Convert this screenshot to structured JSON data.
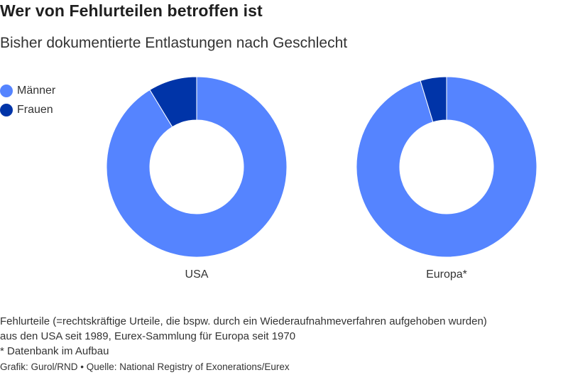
{
  "colors": {
    "maenner": "#5584ff",
    "frauen": "#0034a8"
  },
  "chart_data": {
    "type": "pie",
    "title": "Wer von Fehlurteilen betroffen ist",
    "subtitle": "Bisher dokumentierte Entlastungen nach Geschlecht",
    "series_names": [
      "Männer",
      "Frauen"
    ],
    "charts": [
      {
        "category": "USA",
        "values": [
          91.3,
          8.7
        ]
      },
      {
        "category": "Europa*",
        "values": [
          95.3,
          4.7
        ]
      }
    ]
  },
  "notes": {
    "line1": "Fehlurteile (=rechtskräftige Urteile, die bspw. durch ein Wiederaufnahmeverfahren aufgehoben wurden)",
    "line2": "aus den USA seit 1989, Eurex-Sammlung für Europa seit 1970",
    "line3": "* Datenbank im Aufbau"
  },
  "footer": "Grafik: Gurol/RND • Quelle: National Registry of Exonerations/Eurex"
}
